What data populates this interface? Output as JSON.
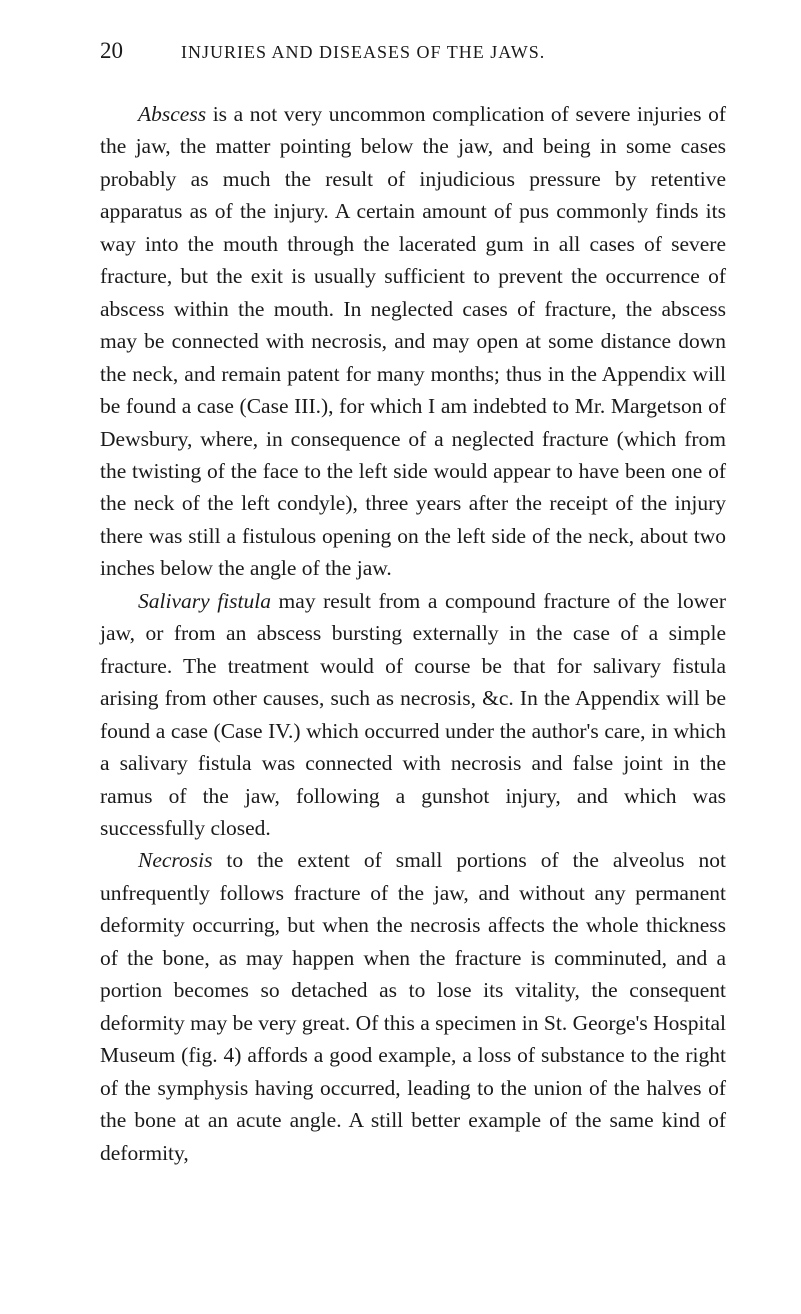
{
  "colors": {
    "background": "#ffffff",
    "text": "#1a1a1a"
  },
  "typography": {
    "body_fontsize": 21.5,
    "header_page_fontsize": 23,
    "header_title_fontsize": 18,
    "line_height": 1.51,
    "font_family": "Georgia, Times New Roman, serif"
  },
  "header": {
    "page_number": "20",
    "running_title": "INJURIES AND DISEASES OF THE JAWS."
  },
  "paragraphs": [
    {
      "lead_italic": "Abscess",
      "text": " is a not very uncommon complication of severe injuries of the jaw, the matter pointing below the jaw, and being in some cases probably as much the result of injudicious pressure by retentive apparatus as of the injury. A certain amount of pus commonly finds its way into the mouth through the lacerated gum in all cases of severe fracture, but the exit is usually sufficient to prevent the occurrence of abscess within the mouth. In neglected cases of fracture, the abscess may be connected with necrosis, and may open at some distance down the neck, and remain patent for many months; thus in the Appendix will be found a case (Case III.), for which I am indebted to Mr. Margetson of Dewsbury, where, in consequence of a neglected fracture (which from the twisting of the face to the left side would appear to have been one of the neck of the left condyle), three years after the receipt of the injury there was still a fistulous opening on the left side of the neck, about two inches below the angle of the jaw."
    },
    {
      "lead_italic": "Salivary fistula",
      "text": " may result from a compound fracture of the lower jaw, or from an abscess bursting externally in the case of a simple fracture. The treatment would of course be that for salivary fistula arising from other causes, such as necrosis, &c. In the Appendix will be found a case (Case IV.) which occurred under the author's care, in which a salivary fistula was connected with necrosis and false joint in the ramus of the jaw, following a gunshot injury, and which was successfully closed."
    },
    {
      "lead_italic": "Necrosis",
      "text": " to the extent of small portions of the alveolus not unfrequently follows fracture of the jaw, and without any permanent deformity occurring, but when the necrosis affects the whole thickness of the bone, as may happen when the fracture is comminuted, and a portion becomes so detached as to lose its vitality, the consequent deformity may be very great. Of this a specimen in St. George's Hospital Museum (fig. 4) affords a good example, a loss of substance to the right of the symphysis having occurred, leading to the union of the halves of the bone at an acute angle. A still better example of the same kind of deformity,"
    }
  ]
}
